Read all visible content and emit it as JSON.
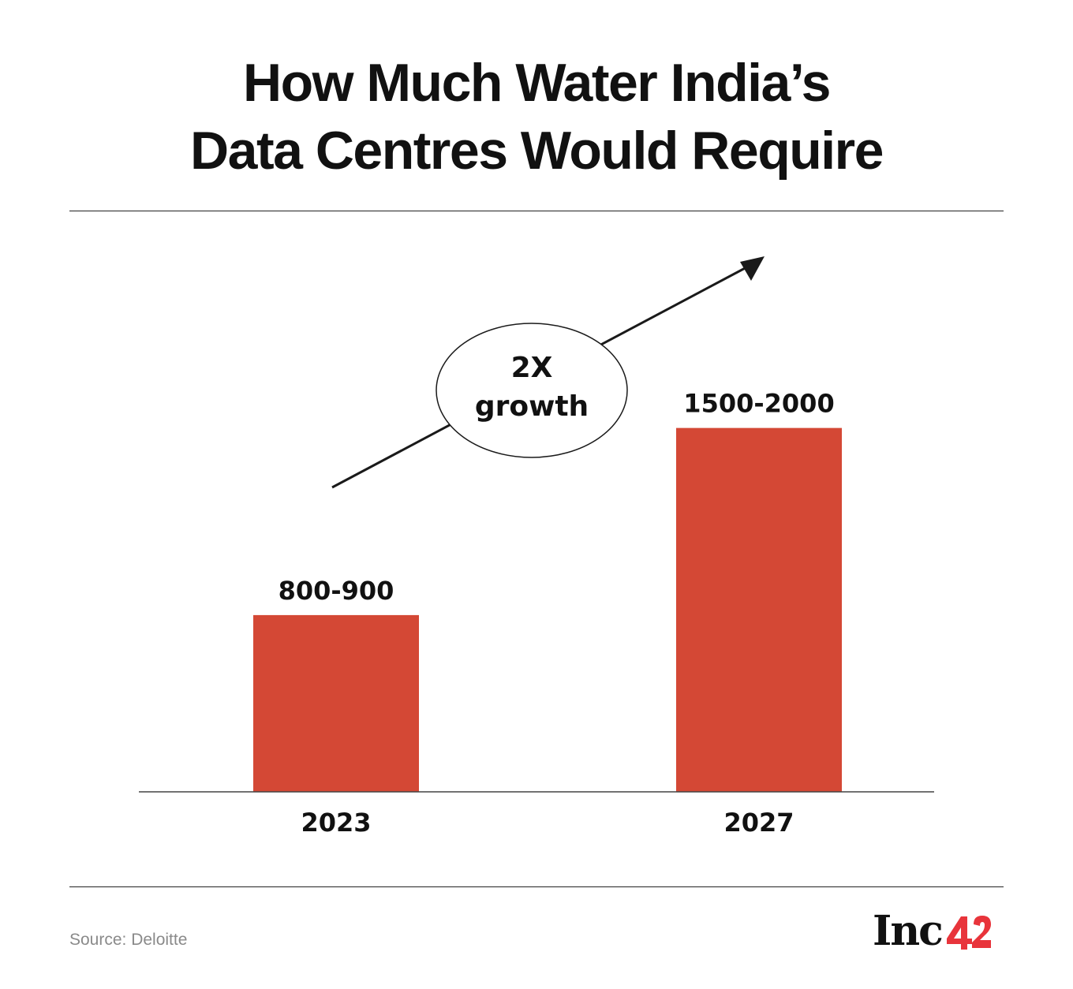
{
  "header": {
    "title_line1": "How Much Water India’s",
    "title_line2": "Data Centres Would Require"
  },
  "chart_data": {
    "type": "bar",
    "categories": [
      "2023",
      "2027"
    ],
    "values": [
      850,
      1750
    ],
    "value_labels": [
      "800-900",
      "1500-2000"
    ],
    "ylim": [
      0,
      2200
    ],
    "title": "How Much Water India’s Data Centres Would Require",
    "xlabel": "",
    "ylabel": "",
    "grid": false,
    "bar_color": "#d44835",
    "annotation": {
      "line1": "2X",
      "line2": "growth"
    }
  },
  "footer": {
    "source": "Source: Deloitte",
    "logo_text": "Inc",
    "logo_number": "42",
    "logo_accent": "#e8343b"
  }
}
